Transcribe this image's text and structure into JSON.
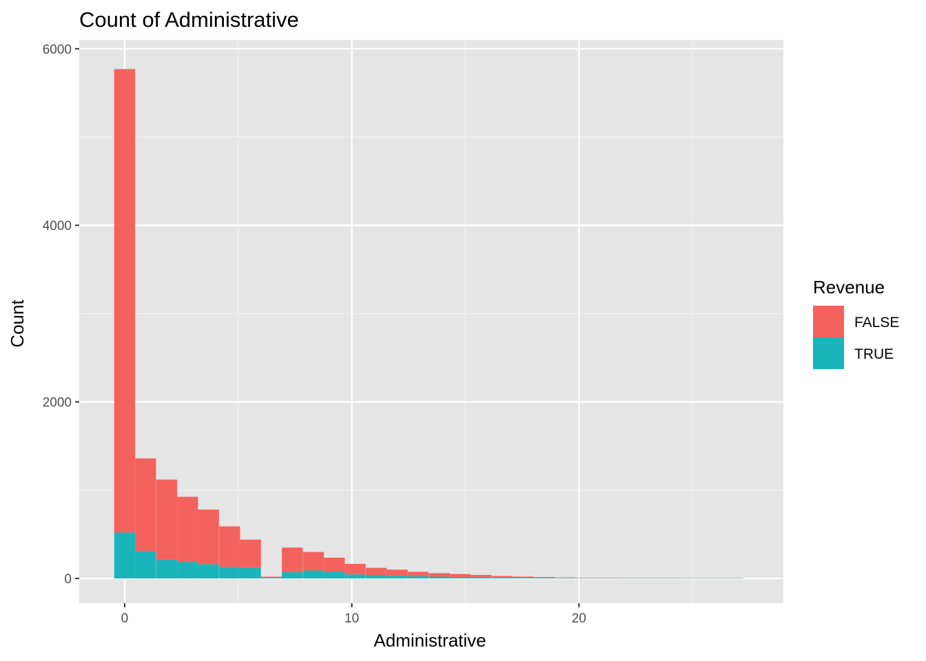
{
  "chart_data": {
    "type": "bar",
    "stacked": true,
    "title": "Count of Administrative",
    "xlabel": "Administrative",
    "ylabel": "Count",
    "xlim": [
      -2,
      29
    ],
    "ylim": [
      -280,
      6100
    ],
    "x_ticks": [
      0,
      10,
      20
    ],
    "y_ticks": [
      0,
      2000,
      4000,
      6000
    ],
    "bin_width": 0.92,
    "bin_centers": [
      0.0,
      0.92,
      1.85,
      2.77,
      3.69,
      4.62,
      5.54,
      6.46,
      7.38,
      8.31,
      9.23,
      10.15,
      11.08,
      12.0,
      12.92,
      13.85,
      14.77,
      15.69,
      16.62,
      17.54,
      18.46,
      19.38,
      20.31,
      21.23,
      22.15,
      23.08,
      24.0,
      24.92,
      25.85,
      26.77
    ],
    "series": [
      {
        "name": "TRUE",
        "color": "#19B5BA",
        "values": [
          520,
          310,
          210,
          185,
          160,
          130,
          120,
          5,
          70,
          90,
          75,
          45,
          40,
          30,
          25,
          20,
          15,
          10,
          8,
          6,
          5,
          4,
          3,
          3,
          3,
          3,
          3,
          3,
          3,
          3
        ]
      },
      {
        "name": "FALSE",
        "color": "#F4625D",
        "values": [
          5250,
          1050,
          910,
          740,
          620,
          460,
          320,
          15,
          280,
          210,
          160,
          120,
          80,
          70,
          50,
          40,
          35,
          30,
          20,
          15,
          10,
          6,
          5,
          5,
          4,
          4,
          4,
          3,
          3,
          3
        ]
      }
    ],
    "legend": {
      "title": "Revenue",
      "position": "right",
      "entries": [
        "FALSE",
        "TRUE"
      ]
    },
    "panel_background": "#E5E5E5",
    "grid": true
  }
}
